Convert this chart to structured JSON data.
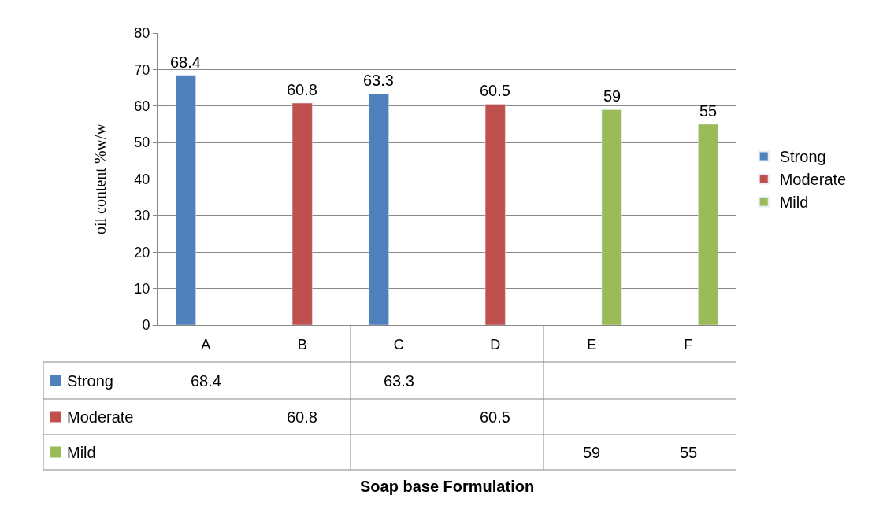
{
  "chart_data": {
    "type": "bar",
    "ylabel": "oil content %w/w",
    "annotations": [
      "Soap base Formulation",
      "68.4",
      "63.3",
      "60.8",
      "60.5",
      "59",
      "55"
    ],
    "categories": [
      "A",
      "B",
      "C",
      "D",
      "E",
      "F"
    ],
    "series": [
      {
        "name": "Strong",
        "color": "#4f81bd",
        "values": [
          68.4,
          null,
          63.3,
          null,
          null,
          null
        ]
      },
      {
        "name": "Moderate",
        "color": "#c0504d",
        "values": [
          null,
          60.8,
          null,
          60.5,
          null,
          null
        ]
      },
      {
        "name": "Mild",
        "color": "#9bbb59",
        "values": [
          null,
          null,
          null,
          null,
          59,
          55
        ]
      }
    ],
    "ylim": [
      0,
      80
    ],
    "yticks": [
      0,
      10,
      20,
      30,
      40,
      50,
      60,
      70,
      80
    ],
    "grid": "y",
    "legend": "right",
    "data_labels": true
  }
}
